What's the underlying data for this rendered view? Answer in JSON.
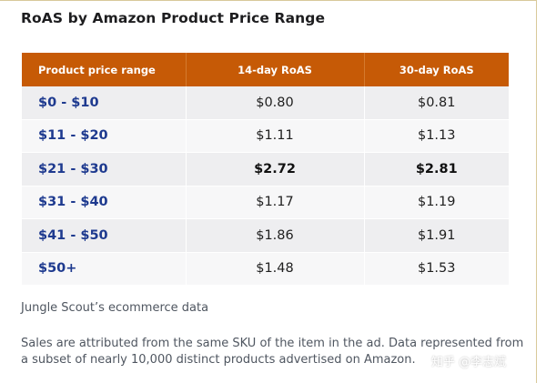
{
  "title": "RoAS by Amazon Product Price Range",
  "table": {
    "headers": [
      "Product price range",
      "14-day RoAS",
      "30-day RoAS"
    ],
    "rows": [
      {
        "range": "$0 - $10",
        "d14": "$0.80",
        "d30": "$0.81"
      },
      {
        "range": "$11 - $20",
        "d14": "$1.11",
        "d30": "$1.13"
      },
      {
        "range": "$21 - $30",
        "d14": "$2.72",
        "d30": "$2.81"
      },
      {
        "range": "$31 - $40",
        "d14": "$1.17",
        "d30": "$1.19"
      },
      {
        "range": "$41 - $50",
        "d14": "$1.86",
        "d30": "$1.91"
      },
      {
        "range": "$50+",
        "d14": "$1.48",
        "d30": "$1.53"
      }
    ]
  },
  "source": "Jungle Scout’s ecommerce data",
  "note": "Sales are attributed from the same SKU of the item in the ad. Data represented from a subset of nearly 10,000 distinct products advertised on Amazon.",
  "watermark": "知乎 @李志斌",
  "colors": {
    "header_bg": "#c65a06",
    "range_text": "#1e3a8f",
    "row_odd": "#eeeef0",
    "row_even": "#f7f7f8"
  }
}
